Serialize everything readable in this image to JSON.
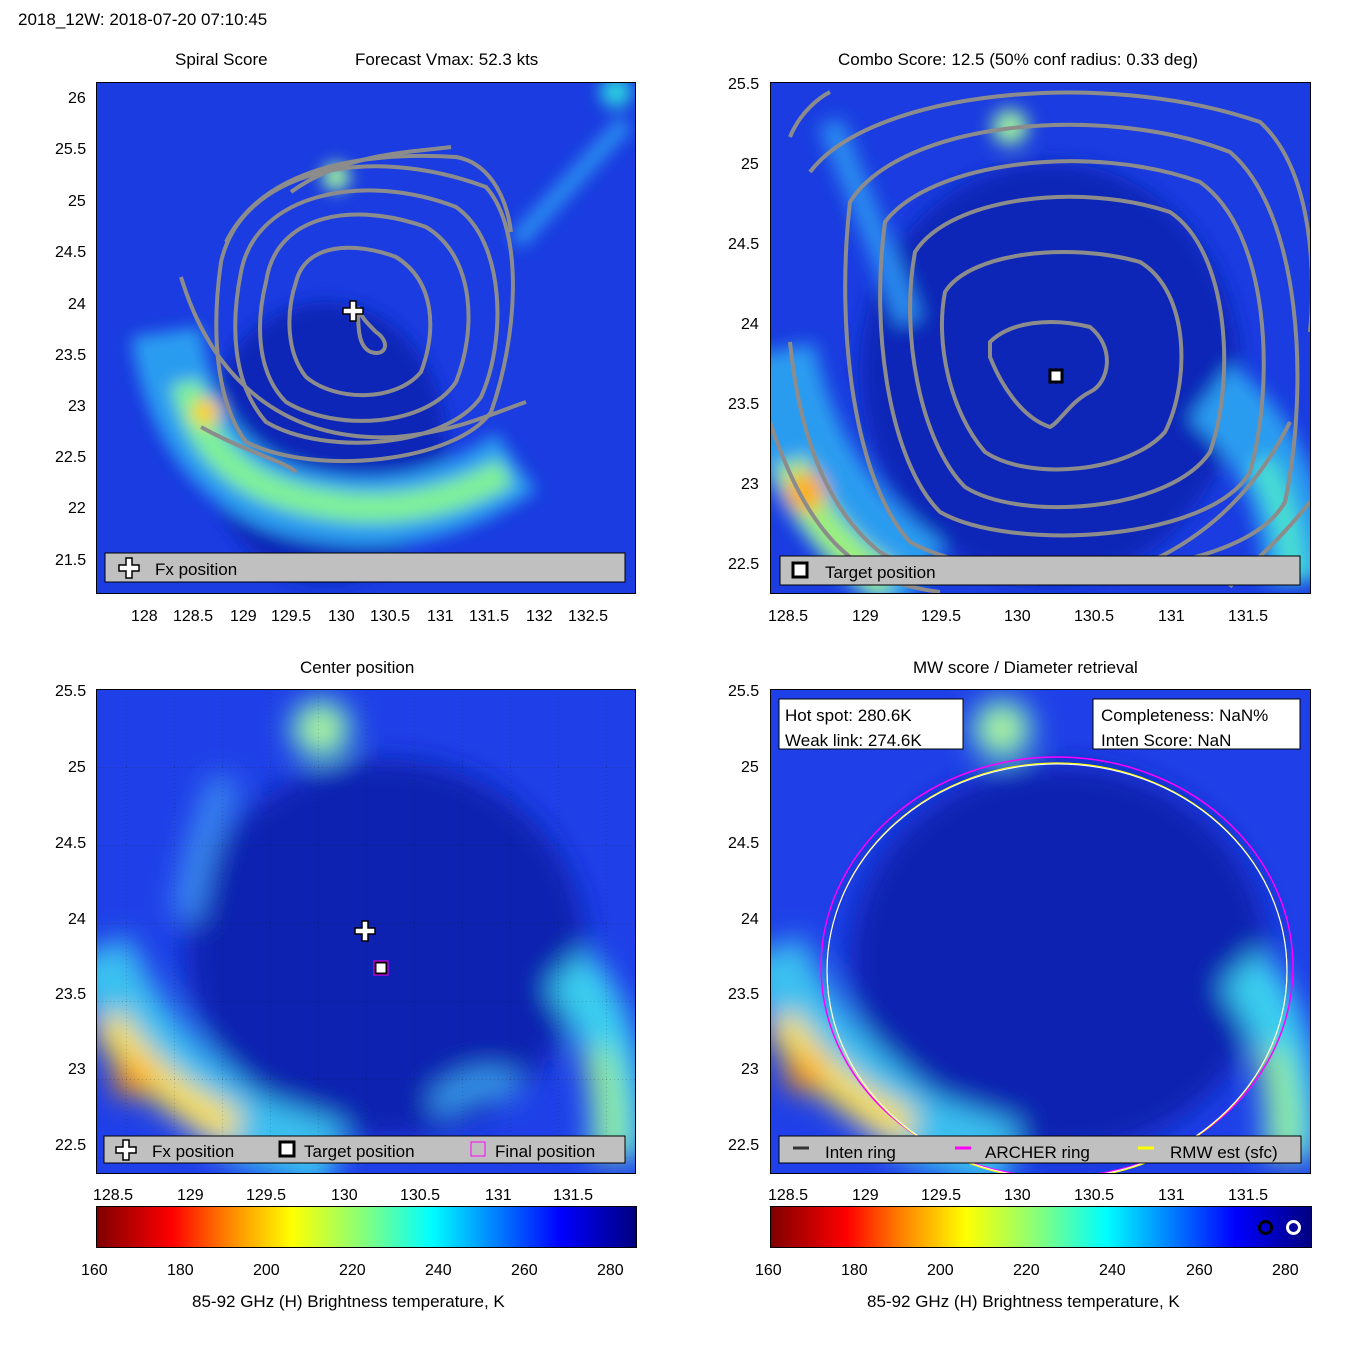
{
  "figure": {
    "title": "2018_12W: 2018-07-20 07:10:45"
  },
  "panels": {
    "spiral": {
      "title_left": "Spiral Score",
      "title_right": "Forecast Vmax: 52.3 kts",
      "legend": [
        "Fx position"
      ]
    },
    "combo": {
      "title": "Combo Score: 12.5  (50% conf radius: 0.33 deg)",
      "legend": [
        "Target position"
      ]
    },
    "center": {
      "title": "Center position",
      "legend": [
        "Fx position",
        "Target position",
        "Final position"
      ]
    },
    "mw": {
      "title": "MW score / Diameter retrieval",
      "box_left": [
        "Hot spot: 280.6K",
        "Weak link: 274.6K"
      ],
      "box_right": [
        "Completeness: NaN%",
        "Inten Score: NaN"
      ],
      "legend": [
        "Inten ring",
        "ARCHER ring",
        "RMW est (sfc)"
      ]
    }
  },
  "colorbars": {
    "label": "85-92 GHz (H) Brightness temperature, K",
    "ticks": [
      "160",
      "180",
      "200",
      "220",
      "240",
      "260",
      "280"
    ]
  },
  "chart_data": [
    {
      "type": "heatmap",
      "panel": "spiral",
      "xticks": [
        "128",
        "128.5",
        "129",
        "129.5",
        "130",
        "130.5",
        "131",
        "131.5",
        "132",
        "132.5"
      ],
      "yticks": [
        "26",
        "25.5",
        "25",
        "24.5",
        "24",
        "23.5",
        "23",
        "22.5",
        "22",
        "21.5"
      ],
      "xlim": [
        127.5,
        132.95
      ],
      "ylim": [
        21.2,
        26.2
      ],
      "fx_position": {
        "lon": 130.1,
        "lat": 23.92
      }
    },
    {
      "type": "heatmap",
      "panel": "combo",
      "xticks": [
        "128.5",
        "129",
        "129.5",
        "130",
        "130.5",
        "131",
        "131.5"
      ],
      "yticks": [
        "25.5",
        "25",
        "24.5",
        "24",
        "23.5",
        "23",
        "22.5"
      ],
      "xlim": [
        128.4,
        131.85
      ],
      "ylim": [
        22.35,
        25.5
      ],
      "target_position": {
        "lon": 130.23,
        "lat": 23.68
      }
    },
    {
      "type": "heatmap",
      "panel": "center",
      "xticks": [
        "128.5",
        "129",
        "129.5",
        "130",
        "130.5",
        "131",
        "131.5"
      ],
      "yticks": [
        "25.5",
        "25",
        "24.5",
        "24",
        "23.5",
        "23",
        "22.5"
      ],
      "xlim": [
        128.4,
        131.85
      ],
      "ylim": [
        22.35,
        25.5
      ],
      "fx_position": {
        "lon": 130.13,
        "lat": 23.92
      },
      "target_position": {
        "lon": 130.23,
        "lat": 23.67
      },
      "final_position": {
        "lon": 130.23,
        "lat": 23.67
      }
    },
    {
      "type": "heatmap",
      "panel": "mw",
      "xticks": [
        "128.5",
        "129",
        "129.5",
        "130",
        "130.5",
        "131",
        "131.5"
      ],
      "yticks": [
        "25.5",
        "25",
        "24.5",
        "24",
        "23.5",
        "23",
        "22.5"
      ],
      "xlim": [
        128.4,
        131.85
      ],
      "ylim": [
        22.35,
        25.5
      ],
      "colorscale": {
        "min": 160,
        "max": 285
      }
    }
  ],
  "colors": {
    "jet": [
      "#800000",
      "#ff0000",
      "#ff8000",
      "#ffff00",
      "#80ff80",
      "#00ffff",
      "#0080ff",
      "#0000ff",
      "#000080"
    ],
    "background_blue": "#1a3ce0",
    "contour": "#8c8c8c",
    "legend_bg": "#c0c0c0",
    "archer_ring": "#ff00ff",
    "rmw_ring": "#ffff00"
  }
}
